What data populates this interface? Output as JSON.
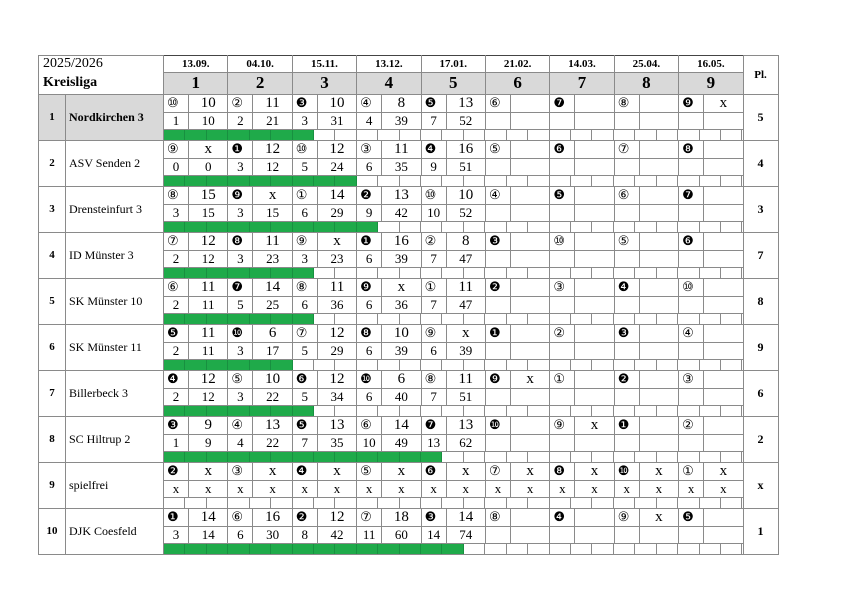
{
  "header": {
    "season": "2025/2026",
    "league": "Kreisliga",
    "place_label": "Pl.",
    "rounds": [
      {
        "date": "13.09.",
        "num": "1"
      },
      {
        "date": "04.10.",
        "num": "2"
      },
      {
        "date": "15.11.",
        "num": "3"
      },
      {
        "date": "13.12.",
        "num": "4"
      },
      {
        "date": "17.01.",
        "num": "5"
      },
      {
        "date": "21.02.",
        "num": "6"
      },
      {
        "date": "14.03.",
        "num": "7"
      },
      {
        "date": "25.04.",
        "num": "8"
      },
      {
        "date": "16.05.",
        "num": "9"
      }
    ]
  },
  "colors": {
    "progress": "#1faa4a",
    "highlight": "#d9d9d9"
  },
  "progress_cells_total": 27,
  "teams": [
    {
      "rank": "1",
      "name": "Nordkirchen 3",
      "place": "5",
      "highlight": true,
      "progress": 7,
      "rounds": [
        {
          "o": "⑩",
          "s": "10",
          "p": "1",
          "t": "10"
        },
        {
          "o": "②",
          "s": "11",
          "p": "2",
          "t": "21"
        },
        {
          "o": "❸",
          "s": "10",
          "p": "3",
          "t": "31"
        },
        {
          "o": "④",
          "s": "8",
          "p": "4",
          "t": "39"
        },
        {
          "o": "❺",
          "s": "13",
          "p": "7",
          "t": "52"
        },
        {
          "o": "⑥",
          "s": "",
          "p": "",
          "t": ""
        },
        {
          "o": "❼",
          "s": "",
          "p": "",
          "t": ""
        },
        {
          "o": "⑧",
          "s": "",
          "p": "",
          "t": ""
        },
        {
          "o": "❾",
          "s": "x",
          "p": "",
          "t": ""
        }
      ]
    },
    {
      "rank": "2",
      "name": "ASV Senden 2",
      "place": "4",
      "progress": 9,
      "rounds": [
        {
          "o": "⑨",
          "s": "x",
          "p": "0",
          "t": "0"
        },
        {
          "o": "❶",
          "s": "12",
          "p": "3",
          "t": "12"
        },
        {
          "o": "⑩",
          "s": "12",
          "p": "5",
          "t": "24"
        },
        {
          "o": "③",
          "s": "11",
          "p": "6",
          "t": "35"
        },
        {
          "o": "❹",
          "s": "16",
          "p": "9",
          "t": "51"
        },
        {
          "o": "⑤",
          "s": "",
          "p": "",
          "t": ""
        },
        {
          "o": "❻",
          "s": "",
          "p": "",
          "t": ""
        },
        {
          "o": "⑦",
          "s": "",
          "p": "",
          "t": ""
        },
        {
          "o": "❽",
          "s": "",
          "p": "",
          "t": ""
        }
      ]
    },
    {
      "rank": "3",
      "name": "Drensteinfurt 3",
      "place": "3",
      "progress": 10,
      "rounds": [
        {
          "o": "⑧",
          "s": "15",
          "p": "3",
          "t": "15"
        },
        {
          "o": "❾",
          "s": "x",
          "p": "3",
          "t": "15"
        },
        {
          "o": "①",
          "s": "14",
          "p": "6",
          "t": "29"
        },
        {
          "o": "❷",
          "s": "13",
          "p": "9",
          "t": "42"
        },
        {
          "o": "⑩",
          "s": "10",
          "p": "10",
          "t": "52"
        },
        {
          "o": "④",
          "s": "",
          "p": "",
          "t": ""
        },
        {
          "o": "❺",
          "s": "",
          "p": "",
          "t": ""
        },
        {
          "o": "⑥",
          "s": "",
          "p": "",
          "t": ""
        },
        {
          "o": "❼",
          "s": "",
          "p": "",
          "t": ""
        }
      ]
    },
    {
      "rank": "4",
      "name": "ID Münster 3",
      "place": "7",
      "progress": 7,
      "rounds": [
        {
          "o": "⑦",
          "s": "12",
          "p": "2",
          "t": "12"
        },
        {
          "o": "❽",
          "s": "11",
          "p": "3",
          "t": "23"
        },
        {
          "o": "⑨",
          "s": "x",
          "p": "3",
          "t": "23"
        },
        {
          "o": "❶",
          "s": "16",
          "p": "6",
          "t": "39"
        },
        {
          "o": "②",
          "s": "8",
          "p": "7",
          "t": "47"
        },
        {
          "o": "❸",
          "s": "",
          "p": "",
          "t": ""
        },
        {
          "o": "⑩",
          "s": "",
          "p": "",
          "t": ""
        },
        {
          "o": "⑤",
          "s": "",
          "p": "",
          "t": ""
        },
        {
          "o": "❻",
          "s": "",
          "p": "",
          "t": ""
        }
      ]
    },
    {
      "rank": "5",
      "name": "SK Münster 10",
      "place": "8",
      "progress": 7,
      "rounds": [
        {
          "o": "⑥",
          "s": "11",
          "p": "2",
          "t": "11"
        },
        {
          "o": "❼",
          "s": "14",
          "p": "5",
          "t": "25"
        },
        {
          "o": "⑧",
          "s": "11",
          "p": "6",
          "t": "36"
        },
        {
          "o": "❾",
          "s": "x",
          "p": "6",
          "t": "36"
        },
        {
          "o": "①",
          "s": "11",
          "p": "7",
          "t": "47"
        },
        {
          "o": "❷",
          "s": "",
          "p": "",
          "t": ""
        },
        {
          "o": "③",
          "s": "",
          "p": "",
          "t": ""
        },
        {
          "o": "❹",
          "s": "",
          "p": "",
          "t": ""
        },
        {
          "o": "⑩",
          "s": "",
          "p": "",
          "t": ""
        }
      ]
    },
    {
      "rank": "6",
      "name": "SK Münster 11",
      "place": "9",
      "progress": 6,
      "rounds": [
        {
          "o": "❺",
          "s": "11",
          "p": "2",
          "t": "11"
        },
        {
          "o": "❿",
          "s": "6",
          "p": "3",
          "t": "17"
        },
        {
          "o": "⑦",
          "s": "12",
          "p": "5",
          "t": "29"
        },
        {
          "o": "❽",
          "s": "10",
          "p": "6",
          "t": "39"
        },
        {
          "o": "⑨",
          "s": "x",
          "p": "6",
          "t": "39"
        },
        {
          "o": "❶",
          "s": "",
          "p": "",
          "t": ""
        },
        {
          "o": "②",
          "s": "",
          "p": "",
          "t": ""
        },
        {
          "o": "❸",
          "s": "",
          "p": "",
          "t": ""
        },
        {
          "o": "④",
          "s": "",
          "p": "",
          "t": ""
        }
      ]
    },
    {
      "rank": "7",
      "name": "Billerbeck 3",
      "place": "6",
      "progress": 7,
      "rounds": [
        {
          "o": "❹",
          "s": "12",
          "p": "2",
          "t": "12"
        },
        {
          "o": "⑤",
          "s": "10",
          "p": "3",
          "t": "22"
        },
        {
          "o": "❻",
          "s": "12",
          "p": "5",
          "t": "34"
        },
        {
          "o": "❿",
          "s": "6",
          "p": "6",
          "t": "40"
        },
        {
          "o": "⑧",
          "s": "11",
          "p": "7",
          "t": "51"
        },
        {
          "o": "❾",
          "s": "x",
          "p": "",
          "t": ""
        },
        {
          "o": "①",
          "s": "",
          "p": "",
          "t": ""
        },
        {
          "o": "❷",
          "s": "",
          "p": "",
          "t": ""
        },
        {
          "o": "③",
          "s": "",
          "p": "",
          "t": ""
        }
      ]
    },
    {
      "rank": "8",
      "name": "SC Hiltrup 2",
      "place": "2",
      "progress": 13,
      "rounds": [
        {
          "o": "❸",
          "s": "9",
          "p": "1",
          "t": "9"
        },
        {
          "o": "④",
          "s": "13",
          "p": "4",
          "t": "22"
        },
        {
          "o": "❺",
          "s": "13",
          "p": "7",
          "t": "35"
        },
        {
          "o": "⑥",
          "s": "14",
          "p": "10",
          "t": "49"
        },
        {
          "o": "❼",
          "s": "13",
          "p": "13",
          "t": "62"
        },
        {
          "o": "❿",
          "s": "",
          "p": "",
          "t": ""
        },
        {
          "o": "⑨",
          "s": "x",
          "p": "",
          "t": ""
        },
        {
          "o": "❶",
          "s": "",
          "p": "",
          "t": ""
        },
        {
          "o": "②",
          "s": "",
          "p": "",
          "t": ""
        }
      ]
    },
    {
      "rank": "9",
      "name": "spielfrei",
      "place": "x",
      "progress": 0,
      "rounds": [
        {
          "o": "❷",
          "s": "x",
          "p": "x",
          "t": "x"
        },
        {
          "o": "③",
          "s": "x",
          "p": "x",
          "t": "x"
        },
        {
          "o": "❹",
          "s": "x",
          "p": "x",
          "t": "x"
        },
        {
          "o": "⑤",
          "s": "x",
          "p": "x",
          "t": "x"
        },
        {
          "o": "❻",
          "s": "x",
          "p": "x",
          "t": "x"
        },
        {
          "o": "⑦",
          "s": "x",
          "p": "x",
          "t": "x"
        },
        {
          "o": "❽",
          "s": "x",
          "p": "x",
          "t": "x"
        },
        {
          "o": "❿",
          "s": "x",
          "p": "x",
          "t": "x"
        },
        {
          "o": "①",
          "s": "x",
          "p": "x",
          "t": "x"
        }
      ]
    },
    {
      "rank": "10",
      "name": "DJK Coesfeld",
      "place": "1",
      "progress": 14,
      "rounds": [
        {
          "o": "❶",
          "s": "14",
          "p": "3",
          "t": "14"
        },
        {
          "o": "⑥",
          "s": "16",
          "p": "6",
          "t": "30"
        },
        {
          "o": "❷",
          "s": "12",
          "p": "8",
          "t": "42"
        },
        {
          "o": "⑦",
          "s": "18",
          "p": "11",
          "t": "60"
        },
        {
          "o": "❸",
          "s": "14",
          "p": "14",
          "t": "74"
        },
        {
          "o": "⑧",
          "s": "",
          "p": "",
          "t": ""
        },
        {
          "o": "❹",
          "s": "",
          "p": "",
          "t": ""
        },
        {
          "o": "⑨",
          "s": "x",
          "p": "",
          "t": ""
        },
        {
          "o": "❺",
          "s": "",
          "p": "",
          "t": ""
        }
      ]
    }
  ]
}
